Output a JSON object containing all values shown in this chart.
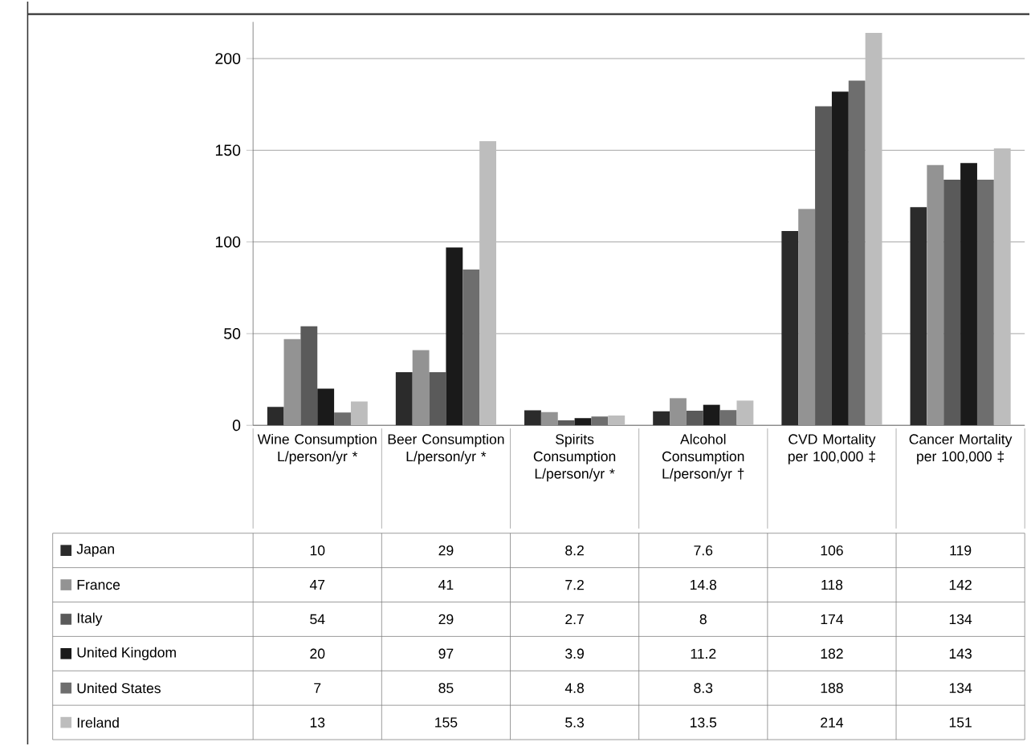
{
  "chart_data": {
    "type": "bar",
    "categories": [
      "Wine Consumption L/person/yr *",
      "Beer Consumption L/person/yr *",
      "Spirits Consumption L/person/yr *",
      "Alcohol Consumption L/person/yr †",
      "CVD Mortality per 100,000 ‡",
      "Cancer Mortality per 100,000 ‡"
    ],
    "series": [
      {
        "name": "Japan",
        "color": "#2b2b2b",
        "values": [
          10,
          29,
          8.2,
          7.6,
          106,
          119
        ]
      },
      {
        "name": "France",
        "color": "#939393",
        "values": [
          47,
          41,
          7.2,
          14.8,
          118,
          142
        ]
      },
      {
        "name": "Italy",
        "color": "#5a5a5a",
        "values": [
          54,
          29,
          2.7,
          8,
          174,
          134
        ]
      },
      {
        "name": "United Kingdom",
        "color": "#1a1a1a",
        "values": [
          20,
          97,
          3.9,
          11.2,
          182,
          143
        ]
      },
      {
        "name": "United States",
        "color": "#6e6e6e",
        "values": [
          7,
          85,
          4.8,
          8.3,
          188,
          134
        ]
      },
      {
        "name": "Ireland",
        "color": "#bdbdbd",
        "values": [
          13,
          155,
          5.3,
          13.5,
          214,
          151
        ]
      }
    ],
    "ylim": [
      0,
      220
    ],
    "yticks": [
      0,
      50,
      100,
      150,
      200
    ],
    "grid": "y",
    "legend": "bottom",
    "data_labels": true
  }
}
